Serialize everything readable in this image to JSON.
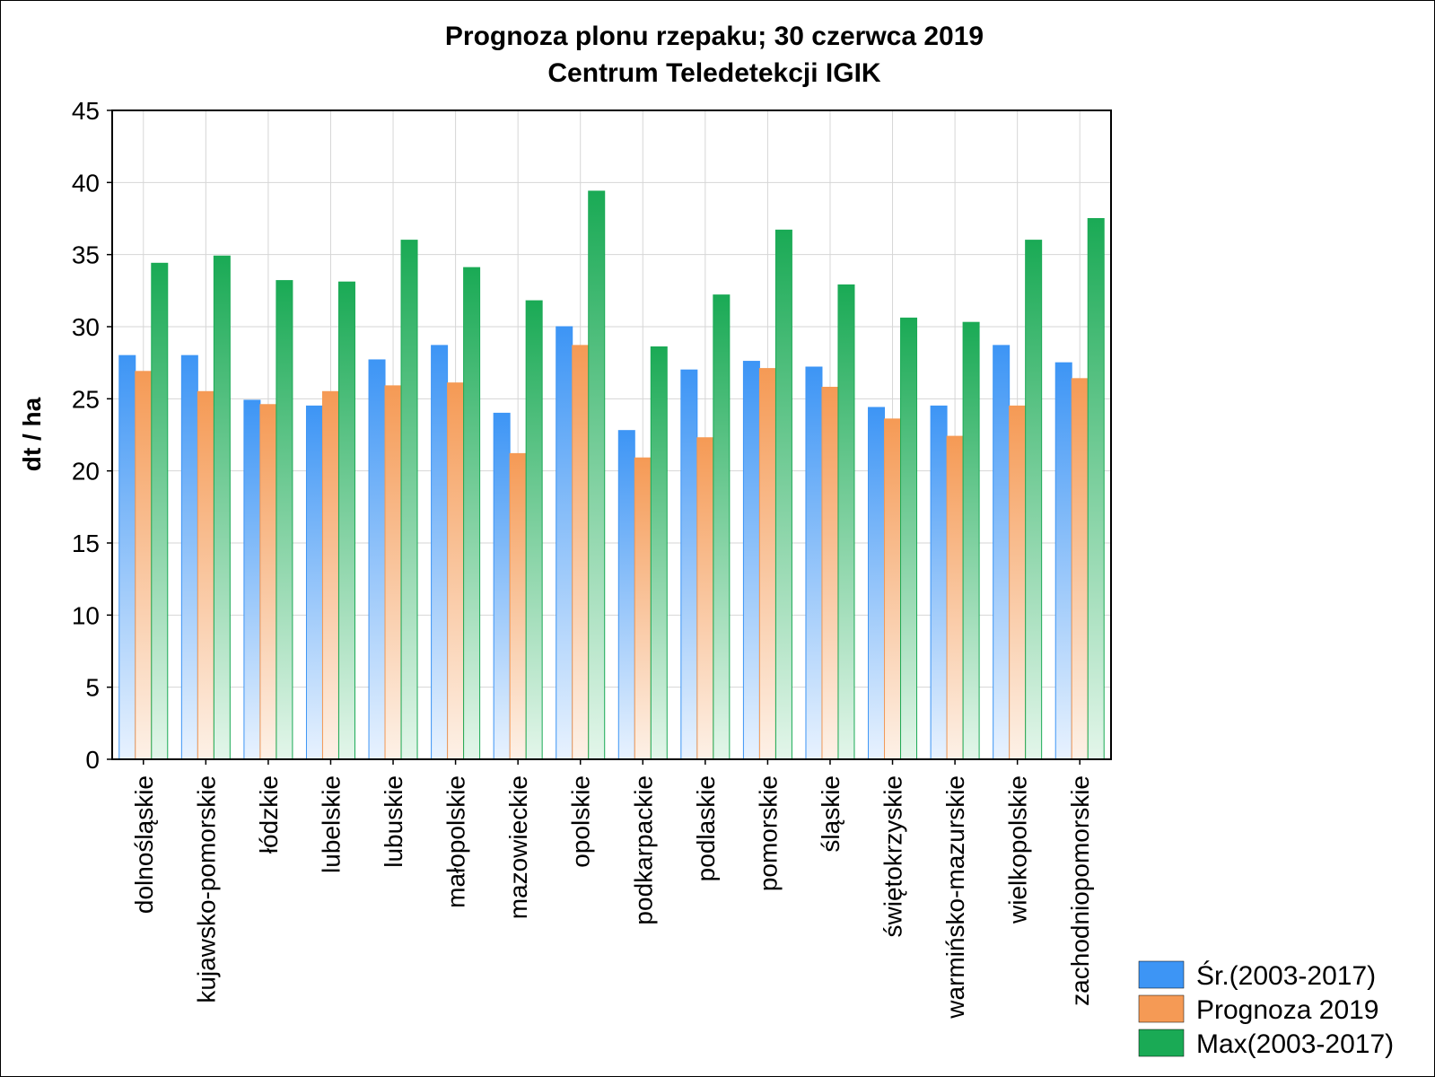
{
  "chart_data": {
    "type": "bar",
    "title": "Prognoza plonu rzepaku; 30 czerwca 2019",
    "subtitle": "Centrum Teledetekcji IGIK",
    "xlabel": "",
    "ylabel": "dt / ha",
    "ylim": [
      0,
      45
    ],
    "yticks": [
      0,
      5,
      10,
      15,
      20,
      25,
      30,
      35,
      40,
      45
    ],
    "grid": true,
    "legend_position": "bottom-right",
    "categories": [
      "dolnośląskie",
      "kujawsko-pomorskie",
      "łódzkie",
      "lubelskie",
      "lubuskie",
      "małopolskie",
      "mazowieckie",
      "opolskie",
      "podkarpackie",
      "podlaskie",
      "pomorskie",
      "śląskie",
      "świętokrzyskie",
      "warmińsko-mazurskie",
      "wielkopolskie",
      "zachodniopomorskie"
    ],
    "series": [
      {
        "name": "Śr.(2003-2017)",
        "color": "#3d95f5",
        "values": [
          28.0,
          28.0,
          24.9,
          24.5,
          27.7,
          28.7,
          24.0,
          30.0,
          22.8,
          27.0,
          27.6,
          27.2,
          24.4,
          24.5,
          28.7,
          27.5
        ]
      },
      {
        "name": "Prognoza 2019",
        "color": "#f59a55",
        "values": [
          26.9,
          25.5,
          24.6,
          25.5,
          25.9,
          26.1,
          21.2,
          28.7,
          20.9,
          22.3,
          27.1,
          25.8,
          23.6,
          22.4,
          24.5,
          26.4
        ]
      },
      {
        "name": "Max(2003-2017)",
        "color": "#1aaa55",
        "values": [
          34.4,
          34.9,
          33.2,
          33.1,
          36.0,
          34.1,
          31.8,
          39.4,
          28.6,
          32.2,
          36.7,
          32.9,
          30.6,
          30.3,
          36.0,
          37.5
        ]
      }
    ]
  }
}
